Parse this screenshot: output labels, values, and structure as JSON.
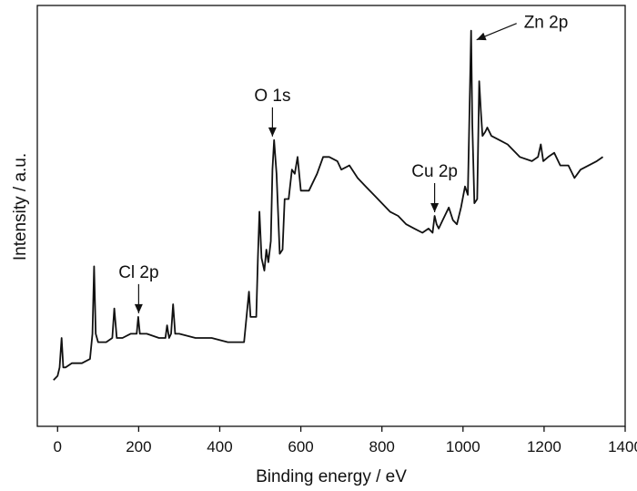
{
  "chart_data": {
    "type": "line",
    "title": "",
    "xlabel": "Binding energy / eV",
    "ylabel": "Intensity / a.u.",
    "xlim": [
      -50,
      1400
    ],
    "ylim": [
      0,
      100
    ],
    "xticks": [
      0,
      200,
      400,
      600,
      800,
      1000,
      1200,
      1400
    ],
    "y_tick_labels_shown": false,
    "grid": false,
    "line_color": "#111111",
    "series": [
      {
        "x": [
          -10,
          0,
          5,
          10,
          14,
          20,
          35,
          60,
          80,
          86,
          90,
          94,
          100,
          120,
          135,
          140,
          146,
          160,
          180,
          195,
          199,
          203,
          220,
          250,
          266,
          270,
          275,
          280,
          285,
          290,
          300,
          340,
          380,
          420,
          460,
          468,
          472,
          476,
          480,
          490,
          494,
          498,
          503,
          510,
          515,
          520,
          526,
          530,
          534,
          540,
          548,
          555,
          560,
          570,
          578,
          585,
          592,
          600,
          620,
          640,
          655,
          670,
          690,
          700,
          720,
          740,
          760,
          780,
          800,
          820,
          840,
          860,
          880,
          900,
          915,
          925,
          930,
          935,
          940,
          950,
          965,
          975,
          985,
          995,
          1005,
          1012,
          1017,
          1020,
          1023,
          1028,
          1035,
          1040,
          1044,
          1048,
          1055,
          1060,
          1070,
          1090,
          1110,
          1140,
          1170,
          1185,
          1192,
          1198,
          1210,
          1225,
          1240,
          1260,
          1275,
          1290,
          1310,
          1330,
          1345
        ],
        "y": [
          11,
          12,
          14,
          21,
          14,
          14,
          15,
          15,
          16,
          22,
          38,
          22,
          20,
          20,
          21,
          28,
          21,
          21,
          22,
          22,
          26,
          22,
          22,
          21,
          21,
          24,
          21,
          22,
          29,
          22,
          22,
          21,
          21,
          20,
          20,
          28,
          32,
          26,
          26,
          26,
          40,
          51,
          40,
          37,
          42,
          39,
          44,
          61,
          68,
          60,
          41,
          42,
          54,
          54,
          61,
          60,
          64,
          56,
          56,
          60,
          64,
          64,
          63,
          61,
          62,
          59,
          57,
          55,
          53,
          51,
          50,
          48,
          47,
          46,
          47,
          46,
          50,
          48,
          47,
          49,
          52,
          49,
          48,
          52,
          57,
          55,
          80,
          94,
          72,
          53,
          54,
          82,
          75,
          69,
          70,
          71,
          69,
          68,
          67,
          64,
          63,
          64,
          67,
          63,
          64,
          65,
          62,
          62,
          59,
          61,
          62,
          63,
          64
        ]
      }
    ],
    "annotations": [
      {
        "text": "Cl 2p",
        "x": 200,
        "y": 26
      },
      {
        "text": "O 1s",
        "x": 530,
        "y": 68
      },
      {
        "text": "Cu 2p",
        "x": 930,
        "y": 50
      },
      {
        "text": "Zn 2p",
        "x": 1020,
        "y": 94
      }
    ]
  }
}
